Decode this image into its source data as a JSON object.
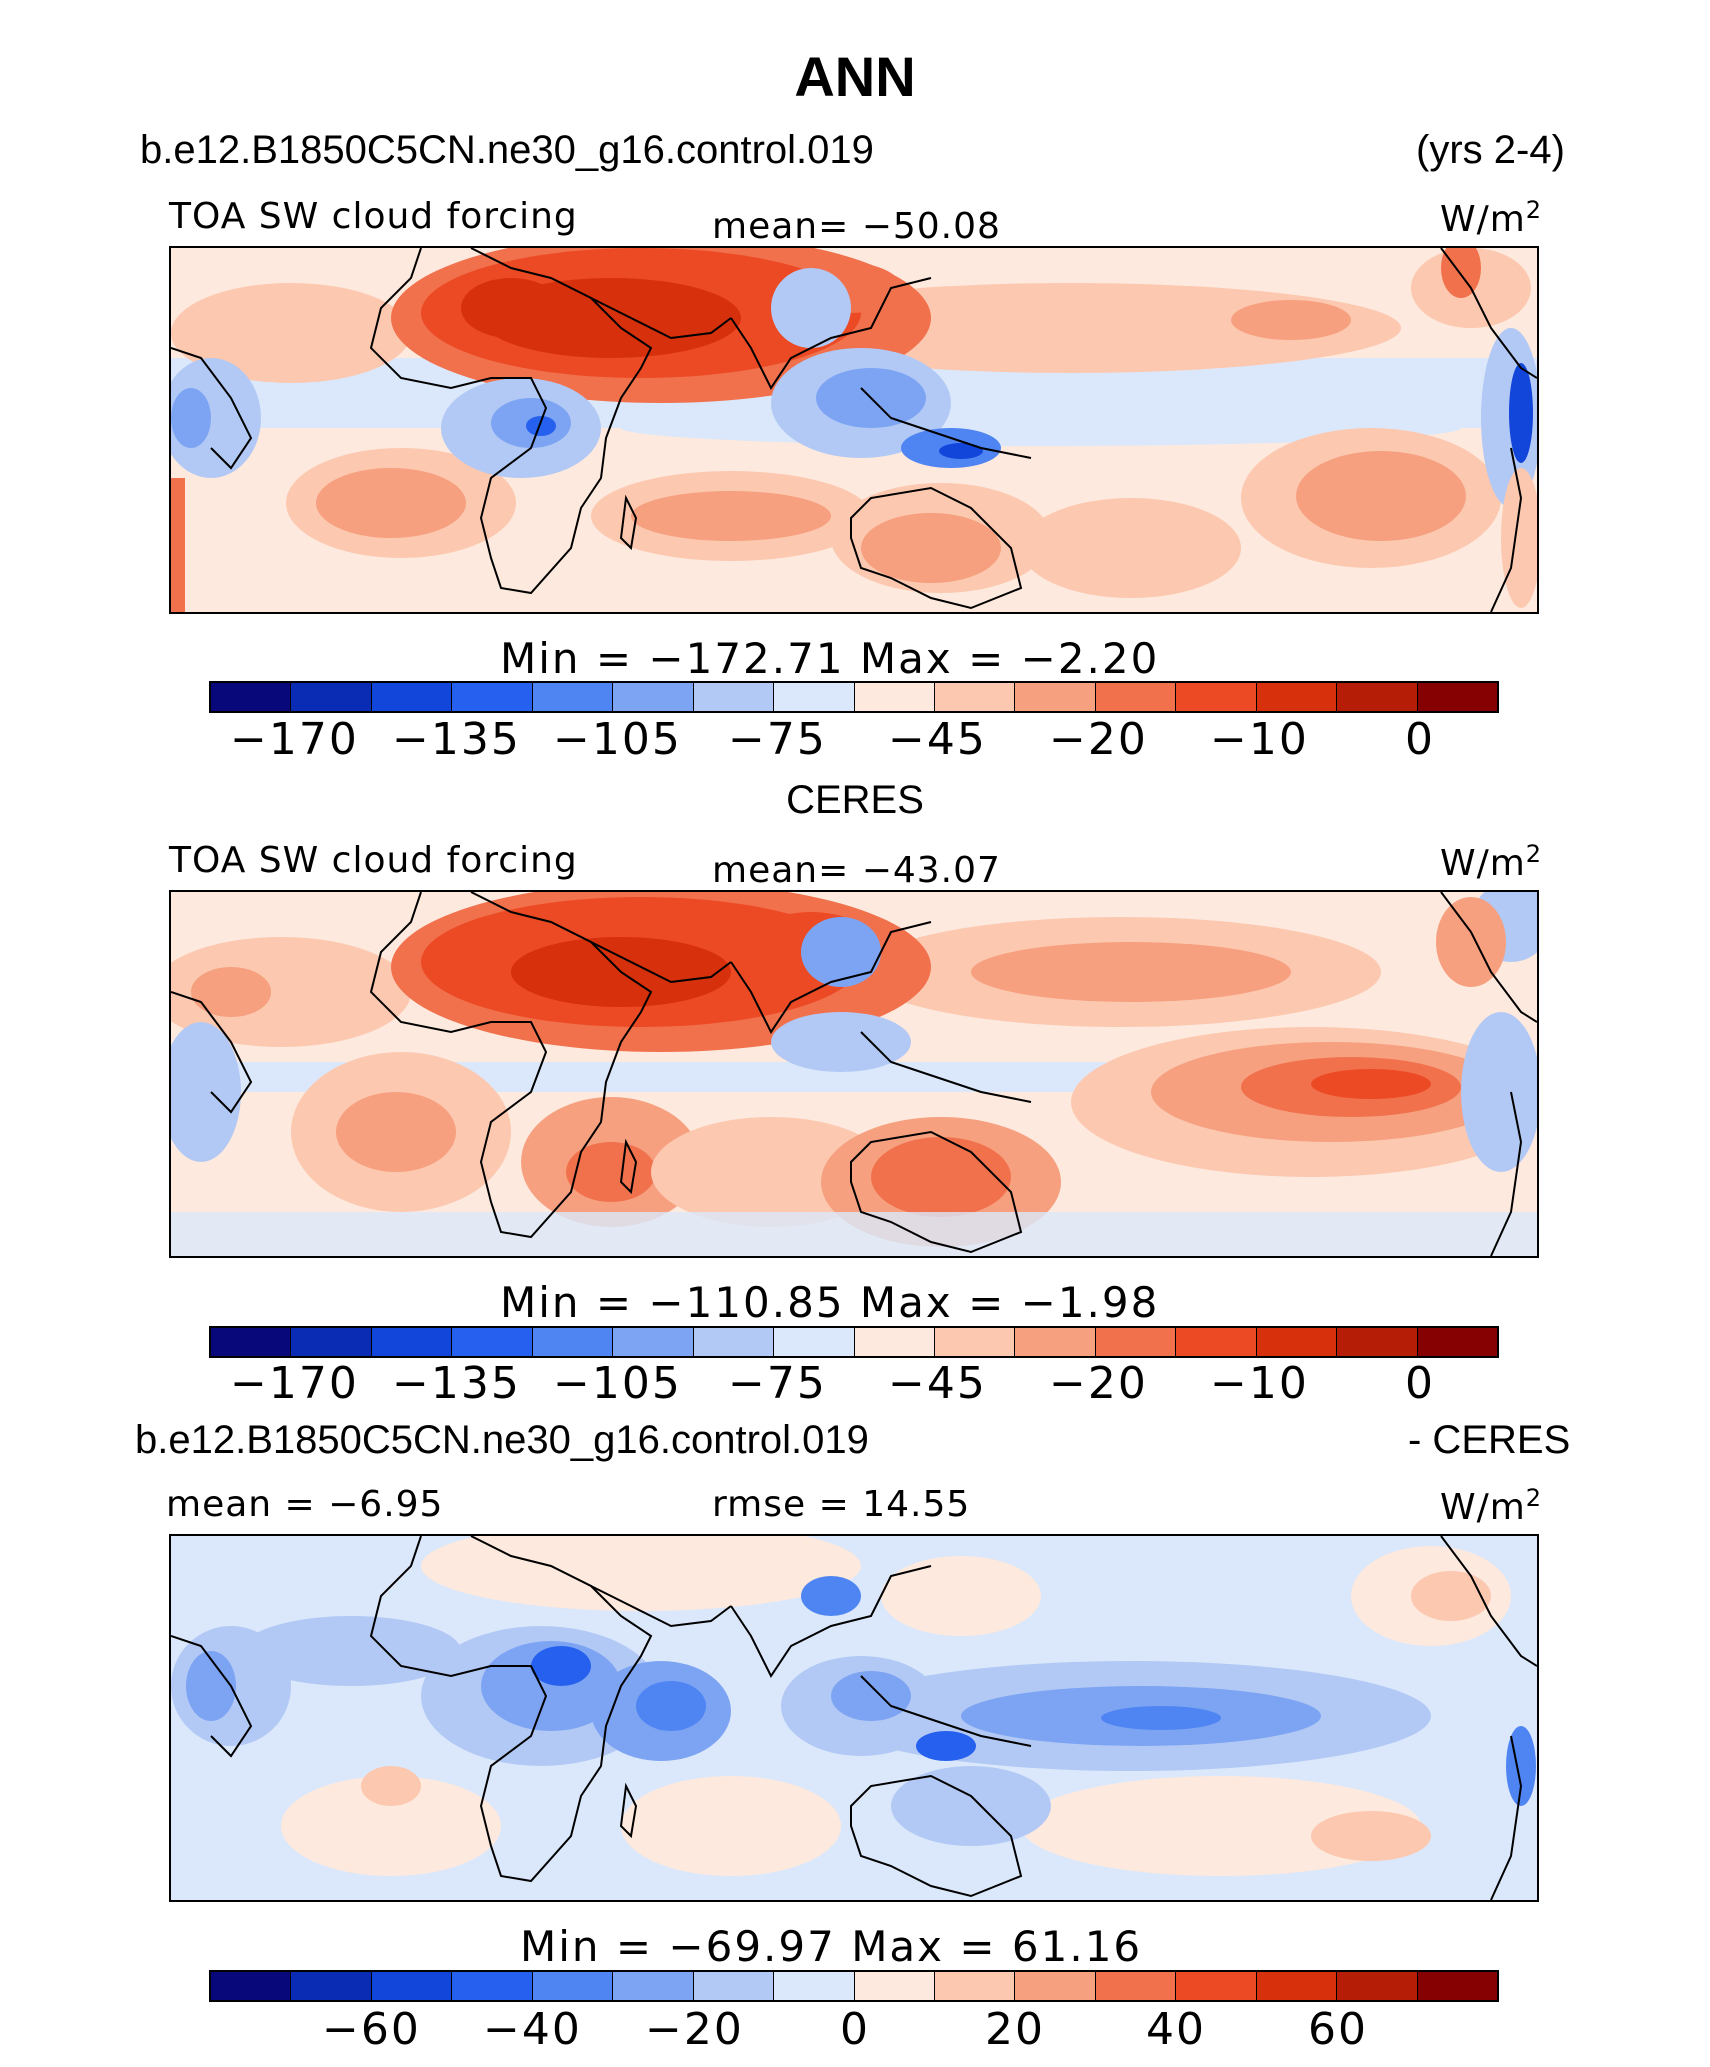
{
  "title": "ANN",
  "header": {
    "case": "b.e12.B1850C5CN.ne30_g16.control.019",
    "years": "(yrs 2-4)"
  },
  "colors": {
    "palette": [
      "#08087a",
      "#0a2bb4",
      "#1245d9",
      "#2660ee",
      "#4f85f3",
      "#7da4f3",
      "#b2c9f5",
      "#dbe8fb",
      "#fde9dd",
      "#fcc8b0",
      "#f6a07f",
      "#f1714d",
      "#ec4a25",
      "#d7300c",
      "#b51d06",
      "#860202"
    ]
  },
  "panels": [
    {
      "left": "TOA SW cloud forcing",
      "mean": "mean= −50.08",
      "units": "W/m",
      "units_sup": "2",
      "minmax": "Min  =  −172.71  Max  =   −2.20",
      "ticks": [
        "−170",
        "−135",
        "−105",
        "−75",
        "−45",
        "−20",
        "−10",
        "0"
      ]
    },
    {
      "caption": "CERES",
      "left": "TOA SW cloud forcing",
      "mean": "mean= −43.07",
      "units": "W/m",
      "units_sup": "2",
      "minmax": "Min  =  −110.85  Max  =   −1.98",
      "ticks": [
        "−170",
        "−135",
        "−105",
        "−75",
        "−45",
        "−20",
        "−10",
        "0"
      ]
    },
    {
      "caption_left": "b.e12.B1850C5CN.ne30_g16.control.019",
      "caption_right": "- CERES",
      "left": "mean  =   −6.95",
      "mean": "rmse  =   14.55",
      "units": "W/m",
      "units_sup": "2",
      "minmax": "Min  =  −69.97  Max  =    61.16",
      "ticks": [
        "−60",
        "−40",
        "−20",
        "0",
        "20",
        "40",
        "60"
      ]
    }
  ]
}
